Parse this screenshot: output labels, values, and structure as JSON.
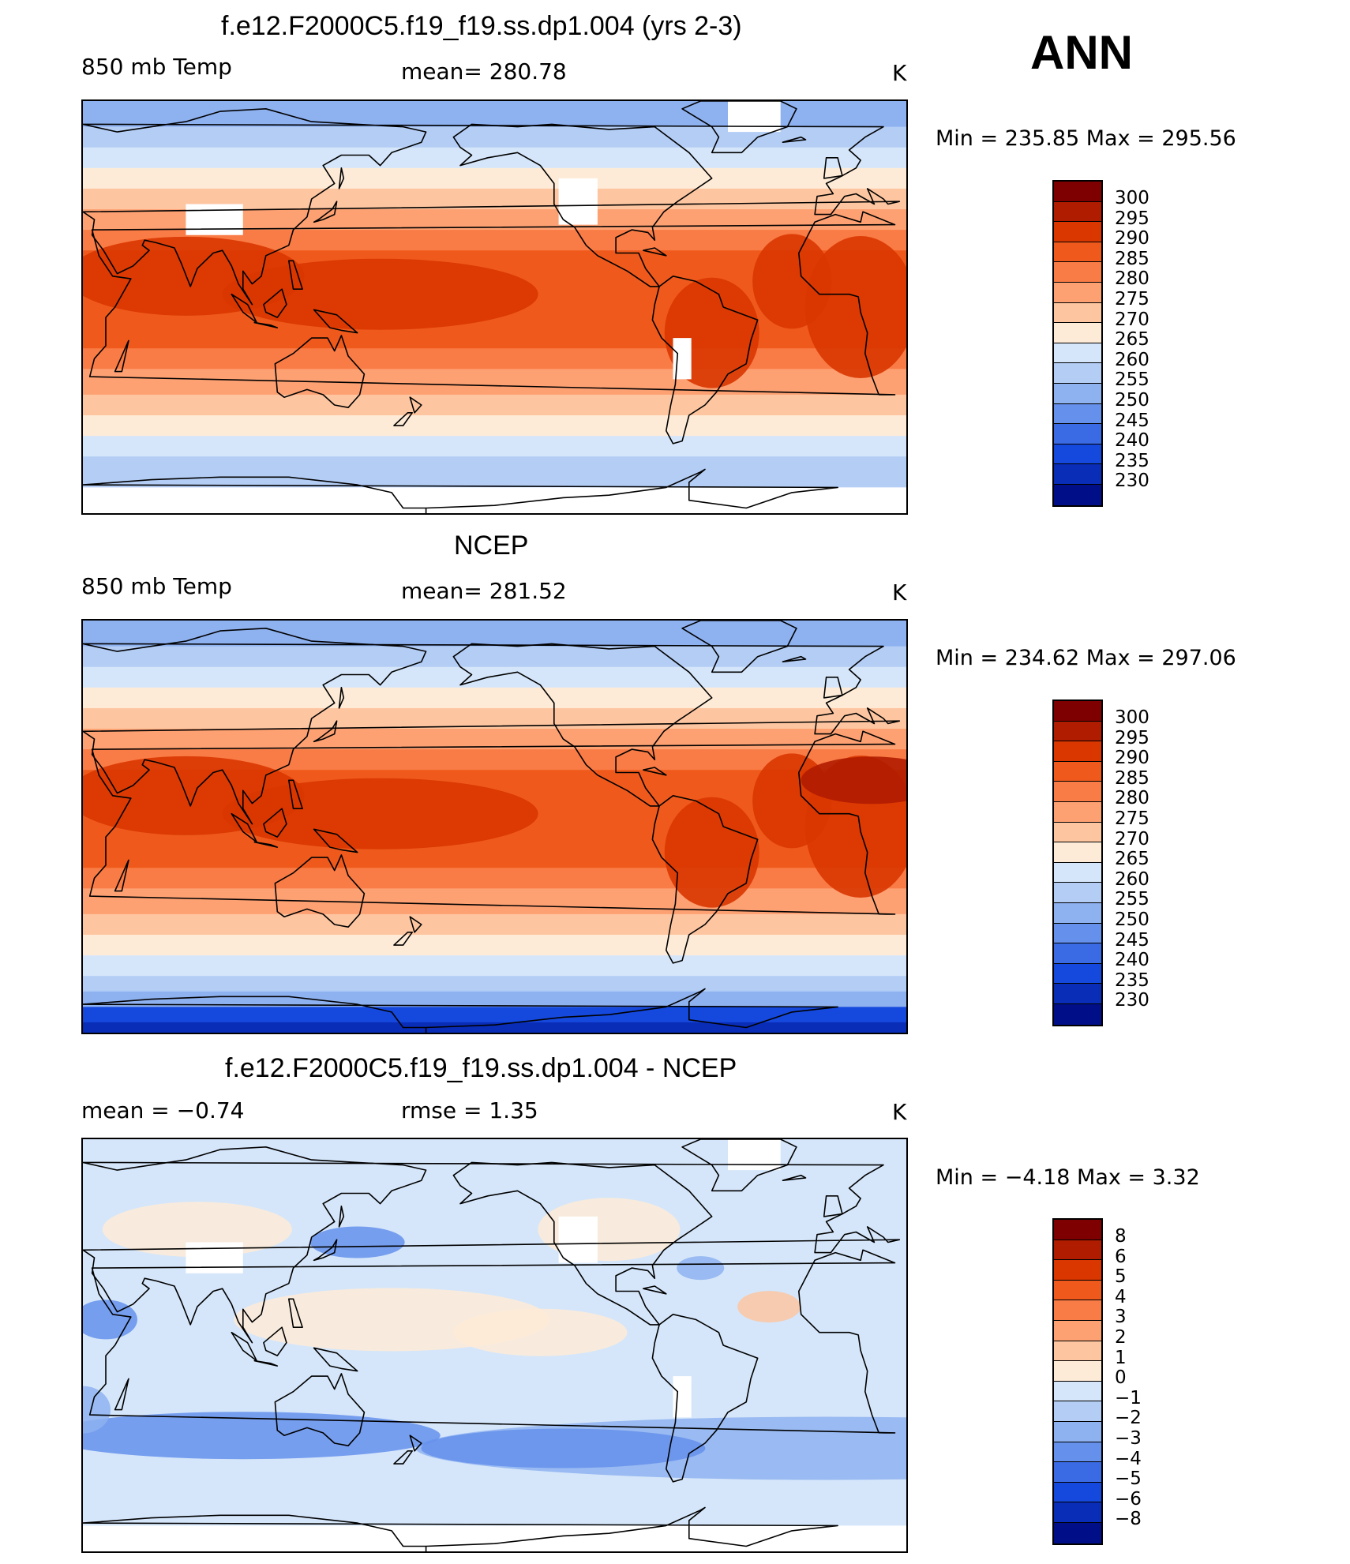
{
  "season": "ANN",
  "panels": [
    {
      "title": "f.e12.F2000C5.f19_f19.ss.dp1.004 (yrs 2-3)",
      "left_label": "850 mb Temp",
      "center_label": "mean=  280.78",
      "units": "K",
      "min_max": "Min  =  235.85  Max  =  295.56",
      "colorbar_labels": [
        "300",
        "295",
        "290",
        "285",
        "280",
        "275",
        "270",
        "265",
        "260",
        "255",
        "250",
        "245",
        "240",
        "235",
        "230"
      ]
    },
    {
      "title": "NCEP",
      "left_label": "850 mb Temp",
      "center_label": "mean=  281.52",
      "units": "K",
      "min_max": "Min  =  234.62  Max  =  297.06",
      "colorbar_labels": [
        "300",
        "295",
        "290",
        "285",
        "280",
        "275",
        "270",
        "265",
        "260",
        "255",
        "250",
        "245",
        "240",
        "235",
        "230"
      ]
    },
    {
      "title": "f.e12.F2000C5.f19_f19.ss.dp1.004 - NCEP",
      "left_label": "mean  =    −0.74",
      "center_label": "rmse  =     1.35",
      "units": "K",
      "min_max": "Min  =    −4.18  Max  =      3.32",
      "colorbar_labels": [
        "8",
        "6",
        "5",
        "4",
        "3",
        "2",
        "1",
        "0",
        "−1",
        "−2",
        "−3",
        "−4",
        "−5",
        "−6",
        "−8"
      ]
    }
  ],
  "colors": {
    "abs_scale": [
      "#7f0000",
      "#b01c00",
      "#d93600",
      "#ef5a1c",
      "#f97b45",
      "#fda173",
      "#fdc6a1",
      "#feebd7",
      "#d5e6fa",
      "#b3cdf5",
      "#8eb1f0",
      "#6590ec",
      "#3a6be4",
      "#1548dd",
      "#0a2db8",
      "#000f87"
    ],
    "diff_scale": [
      "#7f0000",
      "#b01c00",
      "#d93600",
      "#ef5a1c",
      "#f97b45",
      "#fda173",
      "#fdc6a1",
      "#feebd7",
      "#d5e6fa",
      "#b3cdf5",
      "#8eb1f0",
      "#6590ec",
      "#3a6be4",
      "#1548dd",
      "#0a2db8",
      "#000f87"
    ],
    "missing": "#ffffff"
  }
}
